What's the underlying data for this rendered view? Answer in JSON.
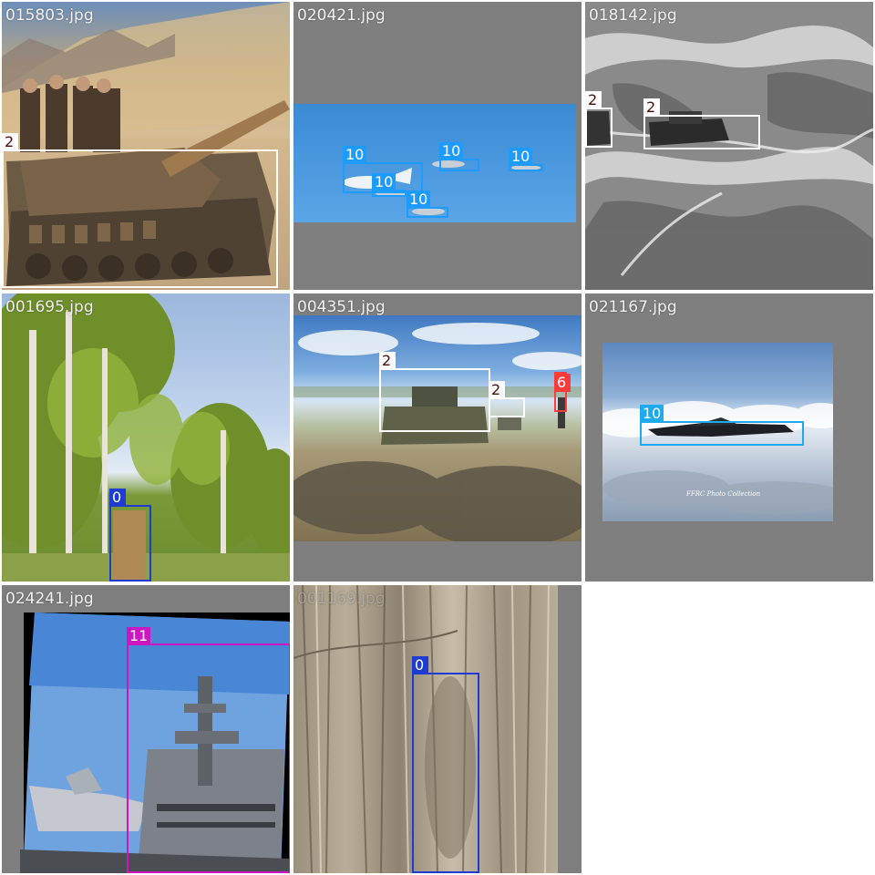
{
  "tiles": [
    {
      "filename": "015803.jpg",
      "detections": [
        {
          "class_id": "2",
          "color": "#ffffff"
        }
      ]
    },
    {
      "filename": "020421.jpg",
      "detections": [
        {
          "class_id": "10",
          "color": "#1e9bff"
        },
        {
          "class_id": "10",
          "color": "#1e9bff"
        },
        {
          "class_id": "10",
          "color": "#1e9bff"
        },
        {
          "class_id": "10",
          "color": "#1e9bff"
        },
        {
          "class_id": "10",
          "color": "#1e9bff"
        }
      ]
    },
    {
      "filename": "018142.jpg",
      "detections": [
        {
          "class_id": "2",
          "color": "#ffffff"
        },
        {
          "class_id": "2",
          "color": "#ffffff"
        }
      ]
    },
    {
      "filename": "001695.jpg",
      "detections": [
        {
          "class_id": "0",
          "color": "#1e3cd2"
        }
      ]
    },
    {
      "filename": "004351.jpg",
      "detections": [
        {
          "class_id": "2",
          "color": "#ffffff"
        },
        {
          "class_id": "2",
          "color": "#ffffff"
        },
        {
          "class_id": "6",
          "color": "#ff3b3b"
        }
      ]
    },
    {
      "filename": "021167.jpg",
      "watermark": "FFRC Photo Collection",
      "detections": [
        {
          "class_id": "10",
          "color": "#1eaaf0"
        }
      ]
    },
    {
      "filename": "024241.jpg",
      "detections": [
        {
          "class_id": "11",
          "color": "#cc16c0"
        }
      ]
    },
    {
      "filename": "001169.jpg",
      "detections": [
        {
          "class_id": "0",
          "color": "#1e3cd2"
        }
      ]
    }
  ]
}
